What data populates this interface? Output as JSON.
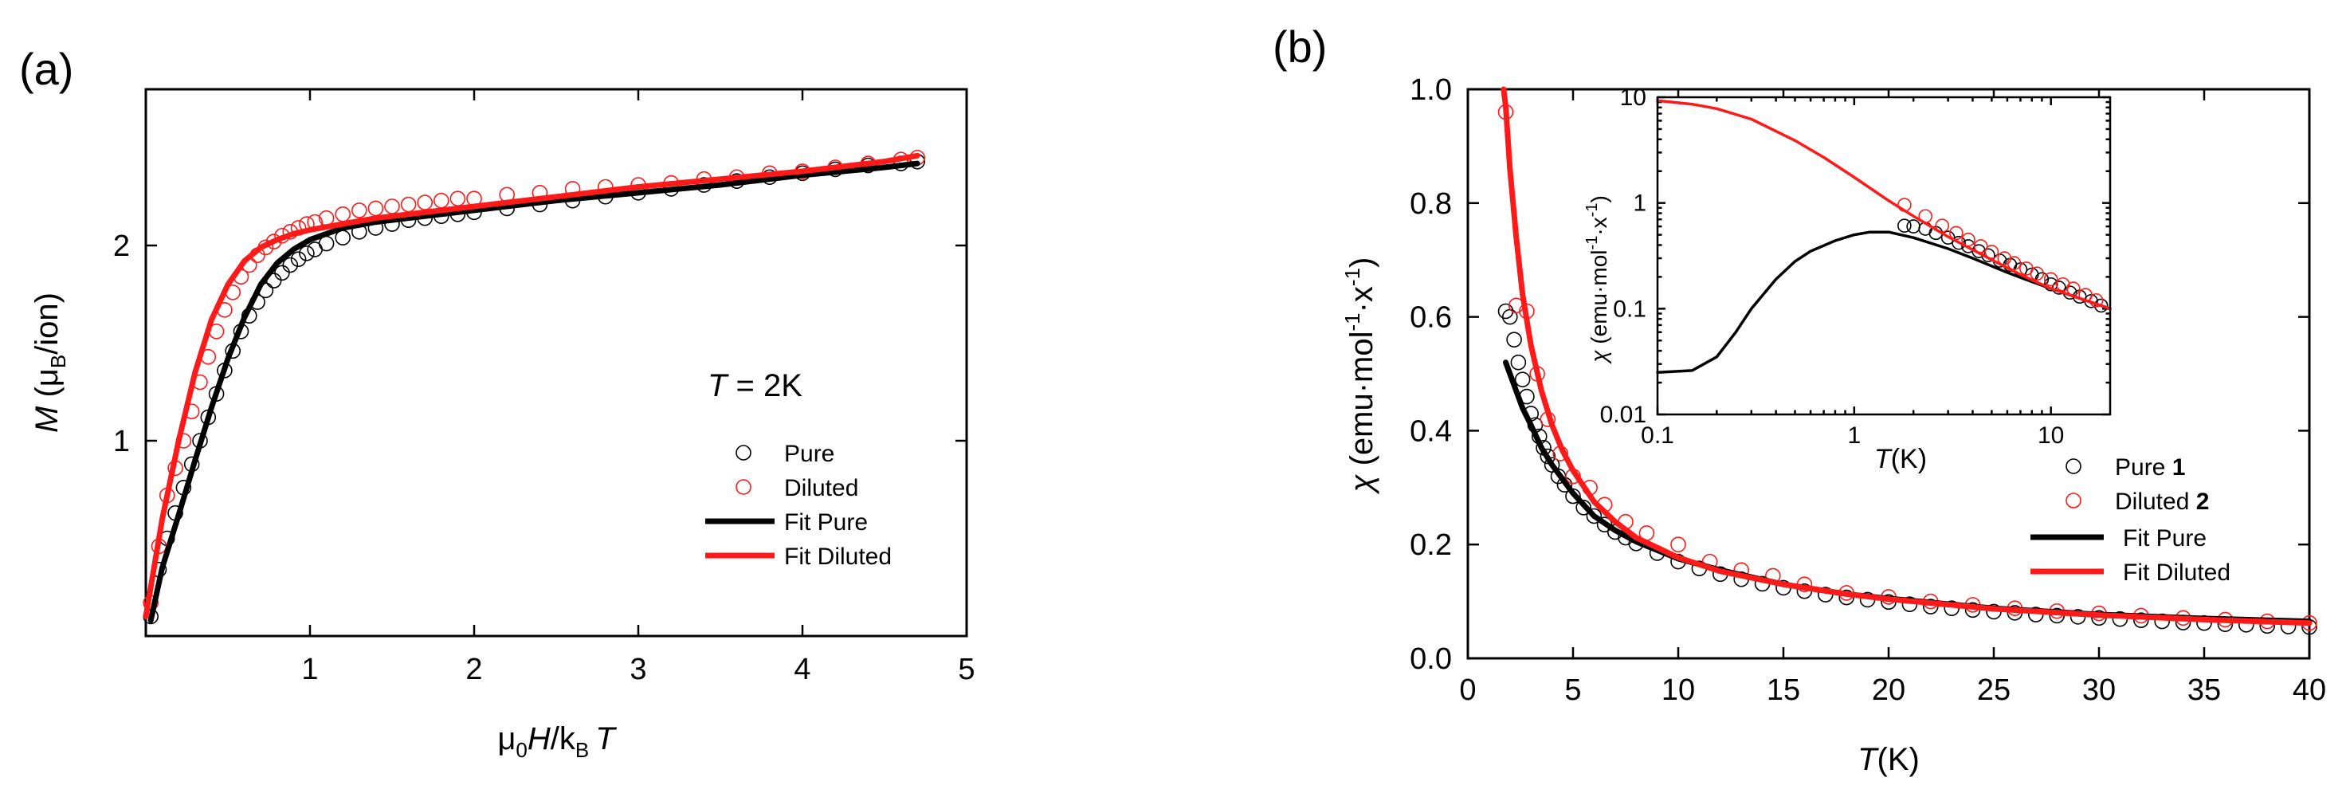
{
  "panel_labels": {
    "a": "(a)",
    "b": "(b)"
  },
  "colors": {
    "pure": "#000000",
    "diluted": "#ff1a1a"
  },
  "chart_data": [
    {
      "id": "a",
      "type": "scatter",
      "title": "",
      "xlabel_parts": {
        "mu": "μ",
        "sub0": "0",
        "H": "H",
        "slash": "/k",
        "subB": "B",
        "T": "T"
      },
      "ylabel_parts": {
        "M": "M",
        "open": " (μ",
        "subB": "B",
        "close": "/ion)"
      },
      "xlim": [
        0,
        5
      ],
      "ylim": [
        0,
        2.8
      ],
      "xticks": [
        1,
        2,
        3,
        4,
        5
      ],
      "yticks": [
        1,
        2
      ],
      "annotation_parts": {
        "T": "T",
        "rest": " = 2K"
      },
      "legend": {
        "pure": "Pure",
        "diluted": "Diluted",
        "fit_pure": "Fit Pure",
        "fit_diluted": "Fit Diluted"
      },
      "series": [
        {
          "name": "Pure",
          "kind": "markers",
          "color": "#000000",
          "x": [
            0.03,
            0.08,
            0.13,
            0.18,
            0.23,
            0.28,
            0.33,
            0.38,
            0.43,
            0.48,
            0.53,
            0.58,
            0.63,
            0.68,
            0.73,
            0.78,
            0.83,
            0.88,
            0.93,
            0.98,
            1.03,
            1.1,
            1.2,
            1.3,
            1.4,
            1.5,
            1.6,
            1.7,
            1.8,
            1.9,
            2.0,
            2.2,
            2.4,
            2.6,
            2.8,
            3.0,
            3.2,
            3.4,
            3.6,
            3.8,
            4.0,
            4.2,
            4.4,
            4.6,
            4.7
          ],
          "y": [
            0.1,
            0.34,
            0.5,
            0.63,
            0.76,
            0.88,
            1.0,
            1.12,
            1.24,
            1.36,
            1.46,
            1.56,
            1.64,
            1.71,
            1.77,
            1.82,
            1.86,
            1.9,
            1.93,
            1.96,
            1.98,
            2.01,
            2.04,
            2.07,
            2.09,
            2.11,
            2.13,
            2.14,
            2.15,
            2.16,
            2.17,
            2.19,
            2.21,
            2.23,
            2.25,
            2.27,
            2.29,
            2.31,
            2.33,
            2.35,
            2.37,
            2.39,
            2.41,
            2.42,
            2.43
          ]
        },
        {
          "name": "Diluted",
          "kind": "markers",
          "color": "#ff1a1a",
          "x": [
            0.03,
            0.08,
            0.13,
            0.18,
            0.23,
            0.28,
            0.33,
            0.38,
            0.43,
            0.48,
            0.53,
            0.58,
            0.63,
            0.68,
            0.73,
            0.78,
            0.83,
            0.88,
            0.93,
            0.98,
            1.03,
            1.1,
            1.2,
            1.3,
            1.4,
            1.5,
            1.6,
            1.7,
            1.8,
            1.9,
            2.0,
            2.2,
            2.4,
            2.6,
            2.8,
            3.0,
            3.2,
            3.4,
            3.6,
            3.8,
            4.0,
            4.2,
            4.4,
            4.6,
            4.7
          ],
          "y": [
            0.17,
            0.46,
            0.72,
            0.86,
            1.0,
            1.15,
            1.3,
            1.43,
            1.56,
            1.67,
            1.76,
            1.84,
            1.9,
            1.95,
            1.99,
            2.02,
            2.05,
            2.07,
            2.09,
            2.11,
            2.12,
            2.14,
            2.16,
            2.18,
            2.19,
            2.2,
            2.21,
            2.22,
            2.23,
            2.24,
            2.24,
            2.26,
            2.27,
            2.29,
            2.3,
            2.31,
            2.32,
            2.34,
            2.35,
            2.37,
            2.38,
            2.4,
            2.42,
            2.44,
            2.45
          ]
        },
        {
          "name": "Fit Pure",
          "kind": "line",
          "color": "#000000",
          "x": [
            0.03,
            0.1,
            0.2,
            0.3,
            0.4,
            0.5,
            0.6,
            0.7,
            0.8,
            0.9,
            1.0,
            1.2,
            1.4,
            1.6,
            1.8,
            2.0,
            2.5,
            3.0,
            3.5,
            4.0,
            4.5,
            4.7
          ],
          "y": [
            0.08,
            0.35,
            0.62,
            0.9,
            1.17,
            1.42,
            1.63,
            1.8,
            1.91,
            1.98,
            2.03,
            2.09,
            2.12,
            2.14,
            2.16,
            2.18,
            2.23,
            2.27,
            2.31,
            2.36,
            2.4,
            2.42
          ]
        },
        {
          "name": "Fit Diluted",
          "kind": "line",
          "color": "#ff1a1a",
          "x": [
            0.0,
            0.05,
            0.1,
            0.2,
            0.3,
            0.4,
            0.5,
            0.6,
            0.7,
            0.8,
            0.9,
            1.0,
            1.2,
            1.4,
            1.6,
            1.8,
            2.0,
            2.5,
            3.0,
            3.5,
            4.0,
            4.5,
            4.7
          ],
          "y": [
            0.1,
            0.35,
            0.6,
            1.0,
            1.35,
            1.62,
            1.8,
            1.92,
            1.99,
            2.03,
            2.06,
            2.08,
            2.11,
            2.14,
            2.16,
            2.18,
            2.2,
            2.25,
            2.3,
            2.34,
            2.38,
            2.43,
            2.46
          ]
        }
      ]
    },
    {
      "id": "b",
      "type": "scatter",
      "title": "",
      "xlabel_parts": {
        "T": "T",
        "unit": "(K)"
      },
      "ylabel_parts": {
        "chi": "χ",
        "unit": " (emu·mol",
        "exp1": "-1",
        "dot": "·x",
        "exp2": "-1",
        "close": ")"
      },
      "xlim": [
        0,
        40
      ],
      "ylim": [
        0,
        1.0
      ],
      "xticks": [
        0,
        5,
        10,
        15,
        20,
        25,
        30,
        35,
        40
      ],
      "xtick_labels": [
        "0",
        "5",
        "10",
        "15",
        "20",
        "25",
        "30",
        "35",
        "40"
      ],
      "yticks": [
        0.0,
        0.2,
        0.4,
        0.6,
        0.8,
        1.0
      ],
      "ytick_labels": [
        "0.0",
        "0.2",
        "0.4",
        "0.6",
        "0.8",
        "1.0"
      ],
      "legend": {
        "pure": "Pure",
        "pure_num": "1",
        "diluted": "Diluted",
        "diluted_num": "2",
        "fit_pure": "Fit Pure",
        "fit_diluted": "Fit Diluted"
      },
      "series": [
        {
          "name": "Pure 1",
          "kind": "markers",
          "color": "#000000",
          "x": [
            1.8,
            2.0,
            2.2,
            2.4,
            2.6,
            2.8,
            3.0,
            3.2,
            3.4,
            3.6,
            3.8,
            4.0,
            4.3,
            4.6,
            5.0,
            5.5,
            6.0,
            6.5,
            7.0,
            7.5,
            8.0,
            9.0,
            10.0,
            11.0,
            12.0,
            13.0,
            14.0,
            15.0,
            16.0,
            17.0,
            18.0,
            19.0,
            20.0,
            21.0,
            22.0,
            23.0,
            24.0,
            25.0,
            26.0,
            27.0,
            28.0,
            29.0,
            30.0,
            31.0,
            32.0,
            33.0,
            34.0,
            35.0,
            36.0,
            37.0,
            38.0,
            39.0,
            40.0
          ],
          "y": [
            0.61,
            0.6,
            0.56,
            0.52,
            0.49,
            0.46,
            0.43,
            0.41,
            0.39,
            0.37,
            0.355,
            0.34,
            0.32,
            0.305,
            0.285,
            0.265,
            0.25,
            0.235,
            0.222,
            0.212,
            0.202,
            0.185,
            0.17,
            0.158,
            0.148,
            0.139,
            0.131,
            0.124,
            0.118,
            0.112,
            0.107,
            0.103,
            0.099,
            0.095,
            0.091,
            0.088,
            0.085,
            0.082,
            0.08,
            0.077,
            0.075,
            0.073,
            0.071,
            0.069,
            0.067,
            0.065,
            0.063,
            0.062,
            0.06,
            0.059,
            0.057,
            0.056,
            0.055
          ]
        },
        {
          "name": "Diluted 2",
          "kind": "markers",
          "color": "#ff1a1a",
          "x": [
            1.8,
            2.3,
            2.8,
            3.3,
            3.8,
            4.4,
            5.0,
            5.8,
            6.5,
            7.5,
            8.5,
            10.0,
            11.5,
            13.0,
            14.5,
            16.0,
            18.0,
            20.0,
            22.0,
            24.0,
            26.0,
            28.0,
            30.0,
            32.0,
            34.0,
            36.0,
            38.0,
            40.0
          ],
          "y": [
            0.96,
            0.62,
            0.61,
            0.5,
            0.42,
            0.36,
            0.32,
            0.3,
            0.27,
            0.24,
            0.22,
            0.2,
            0.17,
            0.155,
            0.145,
            0.13,
            0.115,
            0.108,
            0.1,
            0.094,
            0.088,
            0.083,
            0.079,
            0.075,
            0.071,
            0.068,
            0.065,
            0.062
          ]
        },
        {
          "name": "Fit Pure",
          "kind": "line",
          "color": "#000000",
          "x": [
            1.8,
            2.0,
            2.3,
            2.6,
            3.0,
            3.5,
            4.0,
            5.0,
            6.0,
            7.0,
            8.0,
            10.0,
            12.0,
            15.0,
            18.0,
            20.0,
            25.0,
            30.0,
            35.0,
            40.0
          ],
          "y": [
            0.52,
            0.5,
            0.47,
            0.44,
            0.41,
            0.37,
            0.34,
            0.29,
            0.25,
            0.225,
            0.205,
            0.175,
            0.155,
            0.13,
            0.113,
            0.105,
            0.088,
            0.077,
            0.07,
            0.065
          ]
        },
        {
          "name": "Fit Diluted",
          "kind": "line",
          "color": "#ff1a1a",
          "x": [
            1.7,
            1.8,
            2.0,
            2.3,
            2.6,
            3.0,
            3.5,
            4.0,
            4.5,
            5.0,
            6.0,
            7.0,
            8.0,
            10.0,
            12.0,
            15.0,
            18.0,
            20.0,
            25.0,
            30.0,
            35.0,
            40.0
          ],
          "y": [
            1.0,
            0.97,
            0.86,
            0.74,
            0.64,
            0.55,
            0.47,
            0.41,
            0.365,
            0.33,
            0.275,
            0.24,
            0.212,
            0.177,
            0.153,
            0.13,
            0.113,
            0.104,
            0.087,
            0.076,
            0.068,
            0.062
          ]
        }
      ]
    },
    {
      "id": "b-inset",
      "type": "line",
      "scale": "log-log",
      "title": "",
      "xlabel_parts": {
        "T": "T",
        "unit": "(K)"
      },
      "ylabel_parts": {
        "chi": "χ",
        "unit": " (emu·mol",
        "exp1": "-1",
        "dot": "·x",
        "exp2": "-1",
        "close": ")"
      },
      "xlim": [
        0.1,
        20
      ],
      "ylim": [
        0.01,
        10
      ],
      "xticks": [
        0.1,
        1,
        10
      ],
      "xtick_labels": [
        "0.1",
        "1",
        "10"
      ],
      "yticks": [
        0.01,
        0.1,
        1,
        10
      ],
      "ytick_labels": [
        "0.01",
        "0.1",
        "1",
        "10"
      ],
      "series": [
        {
          "name": "Pure",
          "kind": "markers",
          "color": "#000000",
          "x": [
            1.8,
            2.0,
            2.3,
            2.6,
            3.0,
            3.4,
            3.8,
            4.3,
            4.8,
            5.5,
            6.2,
            7.0,
            8.0,
            9.0,
            10.0,
            11.0,
            12.5,
            14.0,
            16.0,
            18.0
          ],
          "y": [
            0.61,
            0.6,
            0.57,
            0.52,
            0.47,
            0.42,
            0.39,
            0.35,
            0.32,
            0.285,
            0.26,
            0.235,
            0.21,
            0.19,
            0.17,
            0.158,
            0.142,
            0.13,
            0.118,
            0.107
          ]
        },
        {
          "name": "Diluted",
          "kind": "markers",
          "color": "#ff1a1a",
          "x": [
            1.8,
            2.3,
            2.8,
            3.3,
            3.8,
            4.4,
            5.0,
            5.8,
            6.5,
            7.5,
            8.5,
            10.0,
            11.5,
            13.0,
            15.0,
            17.0
          ],
          "y": [
            0.96,
            0.75,
            0.61,
            0.52,
            0.45,
            0.39,
            0.345,
            0.3,
            0.27,
            0.24,
            0.215,
            0.19,
            0.17,
            0.155,
            0.135,
            0.12
          ]
        },
        {
          "name": "Fit Pure",
          "kind": "line",
          "color": "#000000",
          "x": [
            0.1,
            0.15,
            0.2,
            0.25,
            0.3,
            0.4,
            0.5,
            0.6,
            0.8,
            1.0,
            1.2,
            1.5,
            2.0,
            3.0,
            4.0,
            6.0,
            8.0,
            10.0,
            15.0,
            20.0
          ],
          "y": [
            0.025,
            0.026,
            0.035,
            0.06,
            0.1,
            0.19,
            0.28,
            0.35,
            0.44,
            0.5,
            0.53,
            0.53,
            0.47,
            0.37,
            0.3,
            0.22,
            0.18,
            0.155,
            0.12,
            0.1
          ]
        },
        {
          "name": "Fit Diluted",
          "kind": "line",
          "color": "#ff1a1a",
          "x": [
            0.1,
            0.15,
            0.2,
            0.3,
            0.5,
            0.7,
            1.0,
            1.5,
            2.0,
            3.0,
            5.0,
            7.0,
            10.0,
            15.0,
            20.0
          ],
          "y": [
            9.3,
            8.6,
            7.8,
            6.2,
            3.9,
            2.7,
            1.75,
            1.05,
            0.75,
            0.48,
            0.29,
            0.21,
            0.155,
            0.12,
            0.1
          ]
        }
      ]
    }
  ]
}
